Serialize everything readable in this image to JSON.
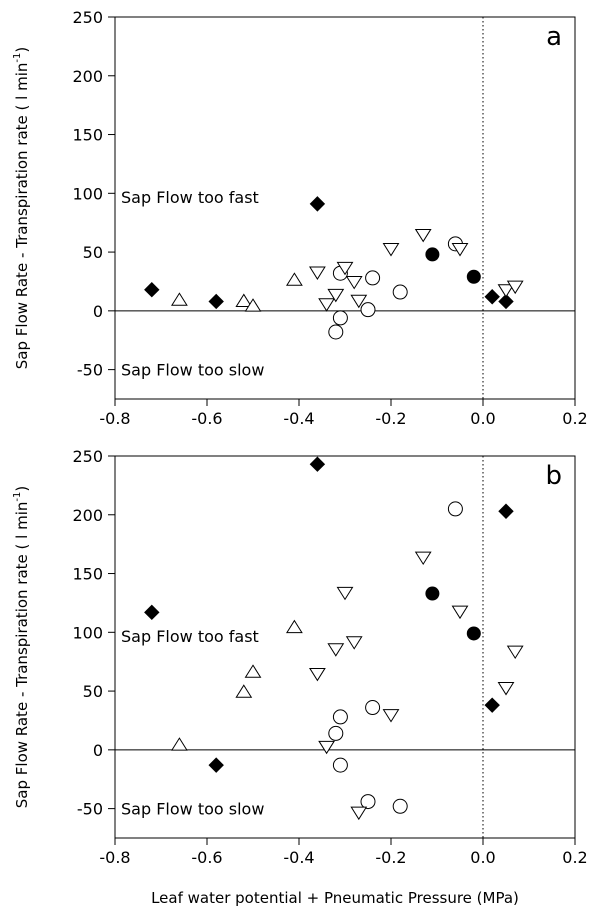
{
  "chart_data": [
    {
      "type": "scatter",
      "panel_label": "a",
      "ylabel": "Sap Flow Rate  - Transpiration rate ( l min",
      "ylabel_sup": "-1",
      "ylabel_end": ")",
      "xlim": [
        -0.8,
        0.2
      ],
      "ylim": [
        -75,
        250
      ],
      "xticks": [
        "-0.8",
        "-0.6",
        "-0.4",
        "-0.2",
        "0.0",
        "0.2"
      ],
      "yticks": [
        "-50",
        "0",
        "50",
        "100",
        "150",
        "200",
        "250"
      ],
      "reference_lines": {
        "horizontal_y": 0,
        "vertical_dotted_x": 0.0
      },
      "annotations": [
        {
          "text": "Sap Flow too fast",
          "x": -0.8,
          "y": 97
        },
        {
          "text": "Sap Flow too slow",
          "x": -0.8,
          "y": -50
        }
      ],
      "series": [
        {
          "marker": "diamond-filled",
          "points": [
            [
              -0.72,
              18
            ],
            [
              -0.58,
              8
            ],
            [
              -0.36,
              91
            ],
            [
              0.02,
              12
            ],
            [
              0.05,
              8
            ]
          ]
        },
        {
          "marker": "circle-filled",
          "points": [
            [
              -0.11,
              48
            ],
            [
              -0.02,
              29
            ]
          ]
        },
        {
          "marker": "circle-open",
          "points": [
            [
              -0.31,
              32
            ],
            [
              -0.31,
              -6
            ],
            [
              -0.32,
              -18
            ],
            [
              -0.24,
              28
            ],
            [
              -0.25,
              1
            ],
            [
              -0.18,
              16
            ],
            [
              -0.06,
              57
            ]
          ]
        },
        {
          "marker": "triangle-up-open",
          "points": [
            [
              -0.66,
              9
            ],
            [
              -0.52,
              8
            ],
            [
              -0.5,
              4
            ],
            [
              -0.41,
              26
            ]
          ]
        },
        {
          "marker": "triangle-down-open",
          "points": [
            [
              -0.36,
              33
            ],
            [
              -0.3,
              37
            ],
            [
              -0.28,
              25
            ],
            [
              -0.34,
              6
            ],
            [
              -0.32,
              14
            ],
            [
              -0.27,
              9
            ],
            [
              -0.2,
              53
            ],
            [
              -0.13,
              65
            ],
            [
              -0.05,
              53
            ],
            [
              0.05,
              18
            ],
            [
              0.07,
              21
            ]
          ]
        }
      ]
    },
    {
      "type": "scatter",
      "panel_label": "b",
      "xlabel": "Leaf water potential + Pneumatic Pressure (MPa)",
      "ylabel": "Sap Flow Rate  - Transpiration rate ( l min",
      "ylabel_sup": "-1",
      "ylabel_end": ")",
      "xlim": [
        -0.8,
        0.2
      ],
      "ylim": [
        -75,
        250
      ],
      "xticks": [
        "-0.8",
        "-0.6",
        "-0.4",
        "-0.2",
        "0.0",
        "0.2"
      ],
      "yticks": [
        "-50",
        "0",
        "50",
        "100",
        "150",
        "200",
        "250"
      ],
      "reference_lines": {
        "horizontal_y": 0,
        "vertical_dotted_x": 0.0
      },
      "annotations": [
        {
          "text": "Sap Flow too fast",
          "x": -0.8,
          "y": 97
        },
        {
          "text": "Sap Flow too slow",
          "x": -0.8,
          "y": -50
        }
      ],
      "series": [
        {
          "marker": "diamond-filled",
          "points": [
            [
              -0.72,
              117
            ],
            [
              -0.58,
              -13
            ],
            [
              -0.36,
              243
            ],
            [
              0.02,
              38
            ],
            [
              0.05,
              203
            ]
          ]
        },
        {
          "marker": "circle-filled",
          "points": [
            [
              -0.11,
              133
            ],
            [
              -0.02,
              99
            ]
          ]
        },
        {
          "marker": "circle-open",
          "points": [
            [
              -0.31,
              28
            ],
            [
              -0.32,
              14
            ],
            [
              -0.31,
              -13
            ],
            [
              -0.24,
              36
            ],
            [
              -0.25,
              -44
            ],
            [
              -0.18,
              -48
            ],
            [
              -0.06,
              205
            ]
          ]
        },
        {
          "marker": "triangle-up-open",
          "points": [
            [
              -0.66,
              4
            ],
            [
              -0.52,
              49
            ],
            [
              -0.5,
              66
            ],
            [
              -0.41,
              104
            ]
          ]
        },
        {
          "marker": "triangle-down-open",
          "points": [
            [
              -0.36,
              65
            ],
            [
              -0.34,
              3
            ],
            [
              -0.32,
              86
            ],
            [
              -0.3,
              134
            ],
            [
              -0.28,
              92
            ],
            [
              -0.27,
              -53
            ],
            [
              -0.2,
              30
            ],
            [
              -0.13,
              164
            ],
            [
              -0.05,
              118
            ],
            [
              0.05,
              53
            ],
            [
              0.07,
              84
            ]
          ]
        }
      ]
    }
  ]
}
